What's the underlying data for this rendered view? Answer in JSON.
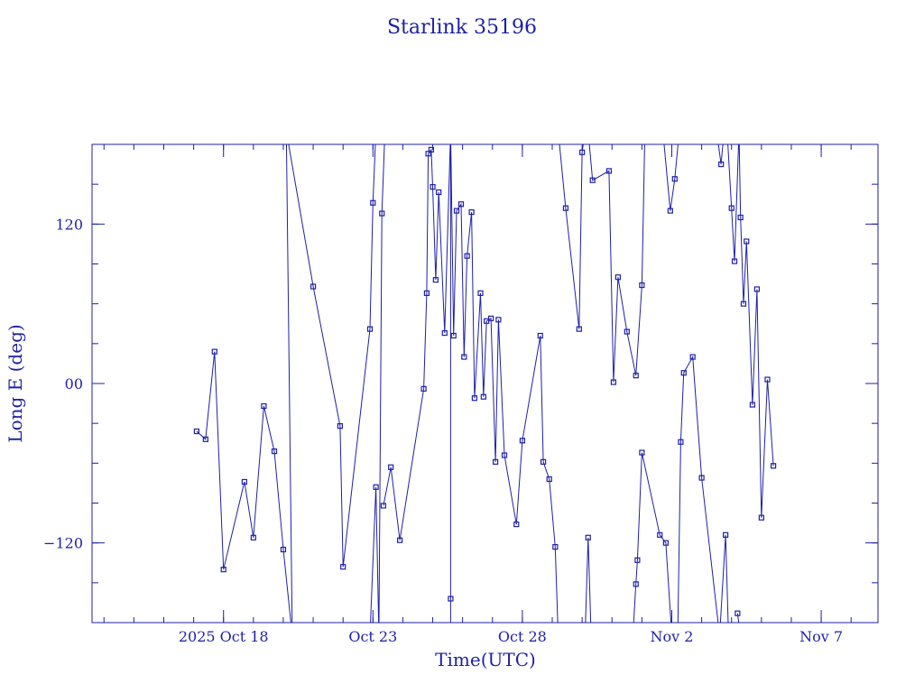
{
  "chart_data": {
    "type": "line",
    "title": "Starlink 35196",
    "xlabel": "Time(UTC)",
    "ylabel": "Long E (deg)",
    "x_unit": "days",
    "x_ticks": [
      {
        "value": 18,
        "label": "2025 Oct 18"
      },
      {
        "value": 23,
        "label": "Oct 23"
      },
      {
        "value": 28,
        "label": "Oct 28"
      },
      {
        "value": 33,
        "label": "Nov  2"
      },
      {
        "value": 38,
        "label": "Nov  7"
      }
    ],
    "xlim": [
      13.6,
      39.9
    ],
    "y_ticks": [
      {
        "value": 120,
        "label": "120"
      },
      {
        "value": 0,
        "label": "00"
      },
      {
        "value": -120,
        "label": "−120"
      }
    ],
    "ylim": [
      -180,
      180
    ],
    "grid": false,
    "series": [
      {
        "points": [
          [
            17.1,
            -36
          ],
          [
            17.4,
            -42
          ],
          [
            17.7,
            24
          ],
          [
            18.0,
            -140
          ],
          [
            18.7,
            -74
          ],
          [
            19.0,
            -116
          ],
          [
            19.35,
            -17
          ],
          [
            19.7,
            -51
          ],
          [
            20.0,
            -125
          ],
          [
            20.3,
            -190
          ],
          [
            20.1,
            190
          ],
          [
            21.0,
            73
          ],
          [
            21.9,
            -32
          ],
          [
            22.0,
            -138
          ],
          [
            22.9,
            41
          ],
          [
            23.0,
            136
          ],
          [
            23.1,
            190
          ]
        ]
      },
      {
        "points": [
          [
            22.9,
            -190
          ],
          [
            23.1,
            -78
          ],
          [
            23.2,
            -190
          ],
          [
            23.3,
            128
          ],
          [
            23.4,
            190
          ]
        ]
      },
      {
        "points": [
          [
            23.35,
            -92
          ],
          [
            23.6,
            -63
          ],
          [
            23.9,
            -118
          ],
          [
            24.7,
            -4
          ],
          [
            24.8,
            68
          ],
          [
            24.85,
            173
          ],
          [
            24.95,
            176
          ],
          [
            25.0,
            148
          ],
          [
            25.1,
            78
          ],
          [
            25.2,
            144
          ],
          [
            25.4,
            38
          ],
          [
            25.6,
            190
          ]
        ]
      },
      {
        "points": [
          [
            25.6,
            -190
          ],
          [
            25.6,
            -162
          ],
          [
            25.6,
            190
          ]
        ]
      },
      {
        "points": [
          [
            25.6,
            190
          ],
          [
            25.7,
            36
          ],
          [
            25.8,
            130
          ],
          [
            25.95,
            135
          ],
          [
            26.05,
            20
          ],
          [
            26.15,
            96
          ],
          [
            26.3,
            129
          ],
          [
            26.4,
            -11
          ],
          [
            26.6,
            68
          ],
          [
            26.7,
            -10
          ],
          [
            26.8,
            47
          ],
          [
            26.95,
            49
          ],
          [
            27.1,
            -59
          ],
          [
            27.2,
            48
          ],
          [
            27.4,
            -54
          ],
          [
            27.8,
            -106
          ],
          [
            28.0,
            -43
          ],
          [
            28.6,
            36
          ],
          [
            28.7,
            -59
          ],
          [
            28.9,
            -72
          ],
          [
            29.1,
            -123
          ],
          [
            29.2,
            -190
          ]
        ]
      },
      {
        "points": [
          [
            29.2,
            190
          ],
          [
            29.45,
            132
          ],
          [
            29.9,
            41
          ],
          [
            30.0,
            174
          ],
          [
            30.1,
            190
          ]
        ]
      },
      {
        "points": [
          [
            30.1,
            -190
          ],
          [
            30.2,
            -116
          ],
          [
            30.3,
            -190
          ]
        ]
      },
      {
        "points": [
          [
            30.2,
            190
          ],
          [
            30.35,
            153
          ],
          [
            30.9,
            160
          ],
          [
            31.05,
            1
          ],
          [
            31.2,
            80
          ],
          [
            31.5,
            39
          ],
          [
            31.8,
            6
          ],
          [
            32.0,
            74
          ],
          [
            32.1,
            190
          ]
        ]
      },
      {
        "points": [
          [
            31.7,
            -190
          ],
          [
            31.8,
            -151
          ],
          [
            31.85,
            -133
          ],
          [
            32.0,
            -52
          ],
          [
            32.6,
            -114
          ],
          [
            32.8,
            -120
          ],
          [
            33.0,
            -190
          ]
        ]
      },
      {
        "points": [
          [
            32.7,
            190
          ],
          [
            32.95,
            130
          ],
          [
            33.1,
            154
          ],
          [
            33.25,
            190
          ]
        ]
      },
      {
        "points": [
          [
            33.2,
            -190
          ],
          [
            33.3,
            -44
          ],
          [
            33.4,
            8
          ],
          [
            33.7,
            20
          ],
          [
            34.0,
            -71
          ],
          [
            34.6,
            -190
          ]
        ]
      },
      {
        "points": [
          [
            34.5,
            190
          ],
          [
            34.65,
            165
          ],
          [
            34.75,
            190
          ]
        ]
      },
      {
        "points": [
          [
            34.6,
            -190
          ],
          [
            34.8,
            -114
          ],
          [
            34.9,
            -190
          ]
        ]
      },
      {
        "points": [
          [
            34.85,
            190
          ],
          [
            35.0,
            132
          ],
          [
            35.1,
            92
          ],
          [
            35.25,
            190
          ],
          [
            35.3,
            125
          ],
          [
            35.4,
            60
          ],
          [
            35.5,
            107
          ],
          [
            35.7,
            -16
          ],
          [
            35.85,
            71
          ],
          [
            36.0,
            -101
          ],
          [
            36.2,
            3
          ],
          [
            36.4,
            -62
          ]
        ]
      },
      {
        "points": [
          [
            35.2,
            -173
          ],
          [
            35.3,
            -190
          ]
        ]
      }
    ]
  }
}
